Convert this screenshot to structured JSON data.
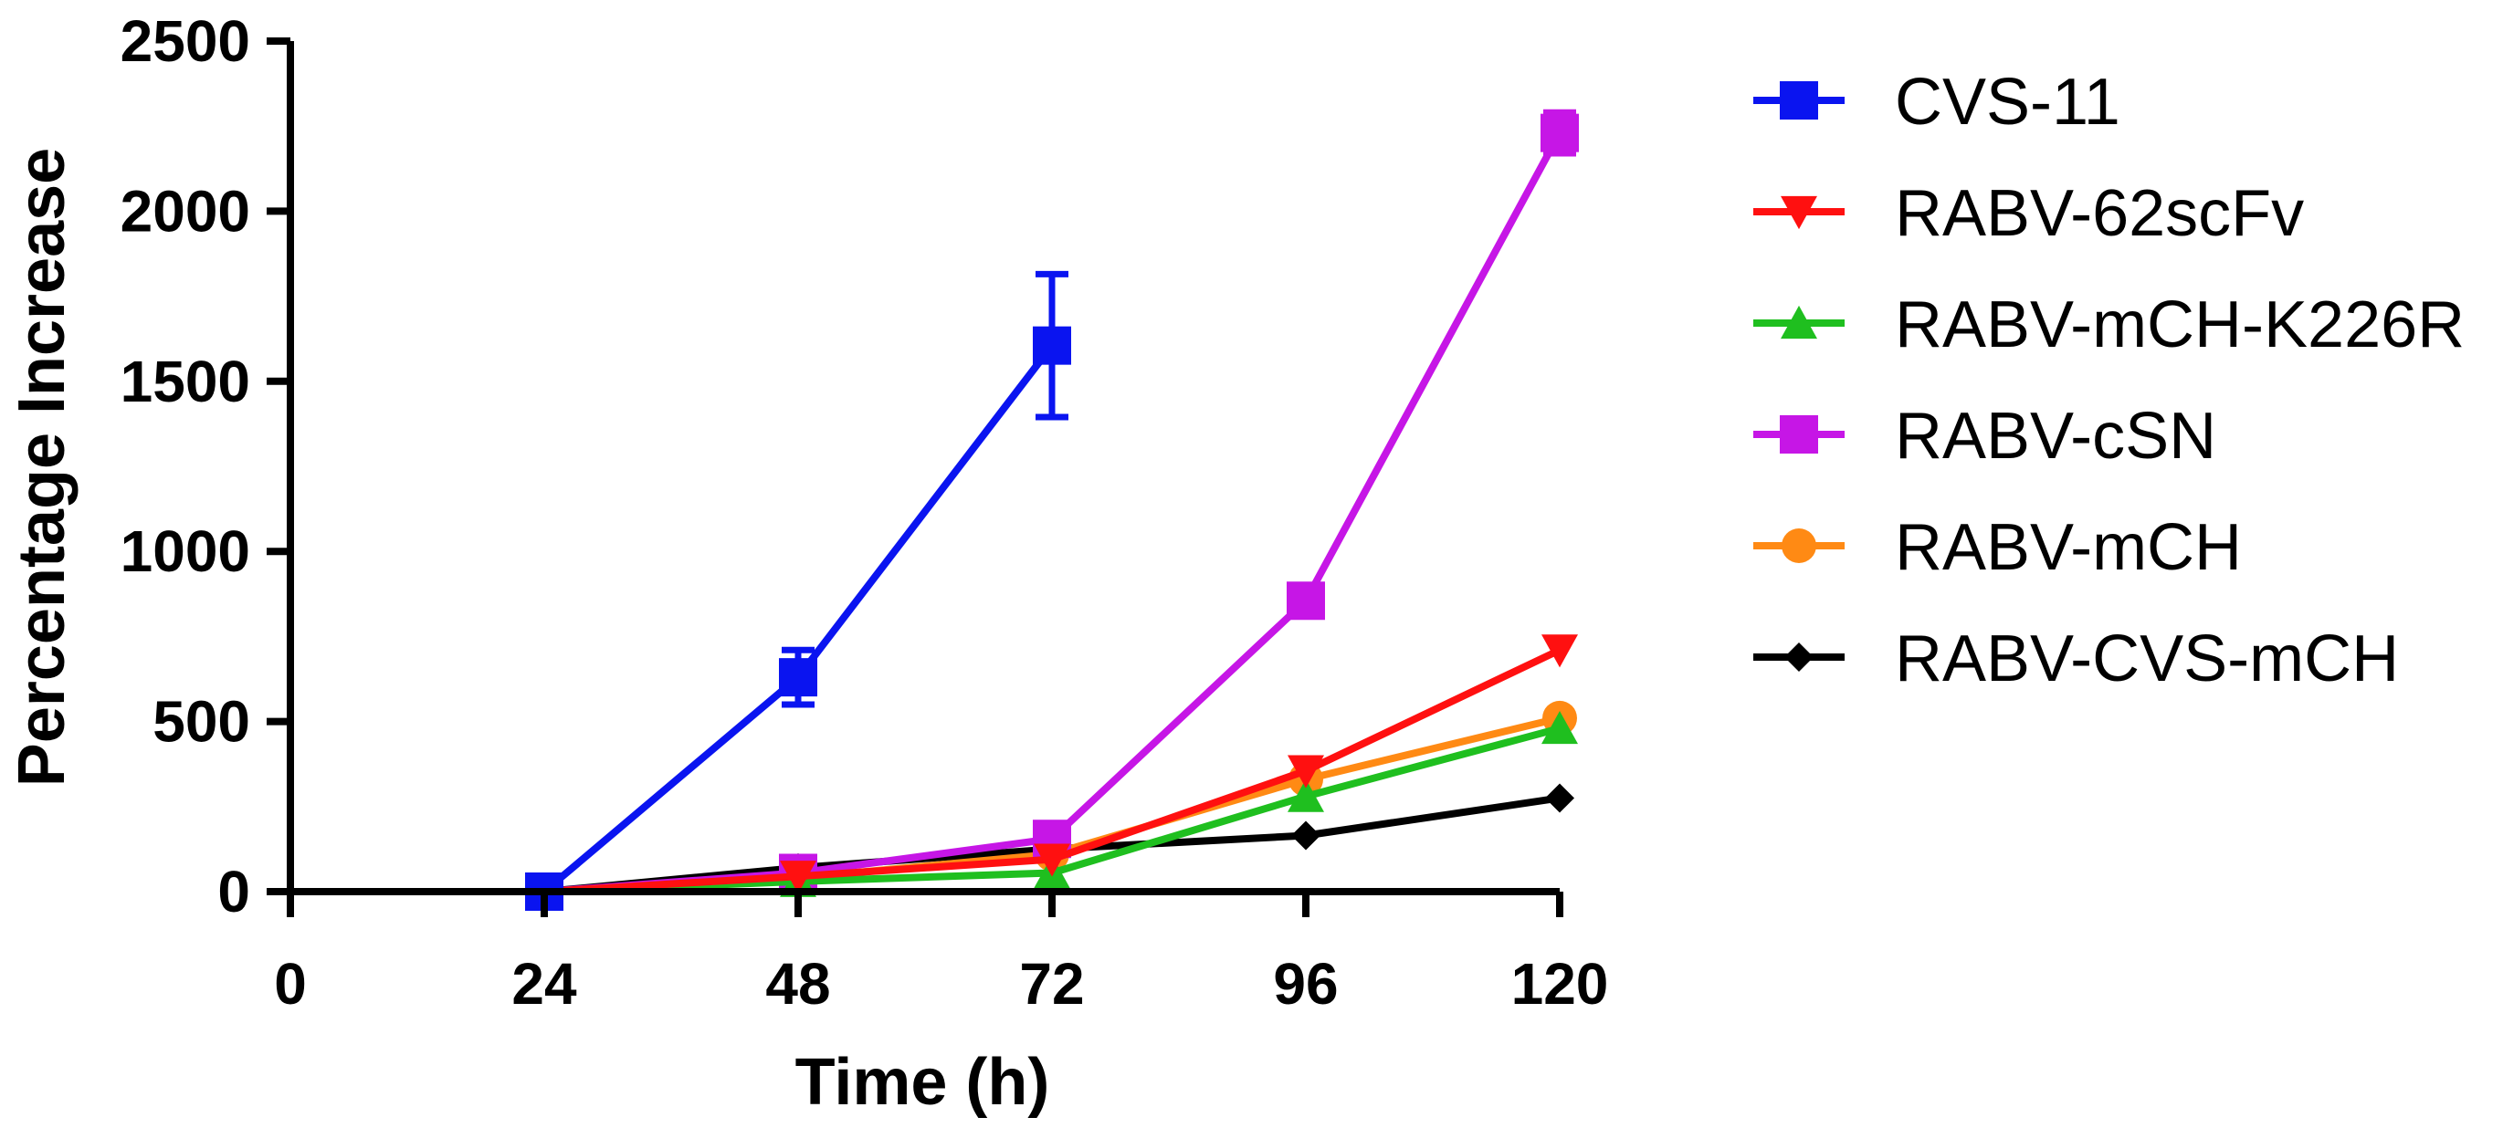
{
  "chart_data": {
    "type": "line",
    "title": "",
    "xlabel": "Time (h)",
    "ylabel": "Percentage Increase",
    "xlim": [
      0,
      120
    ],
    "ylim": [
      0,
      2500
    ],
    "xticks": [
      0,
      24,
      48,
      72,
      96,
      120
    ],
    "yticks": [
      0,
      500,
      1000,
      1500,
      2000,
      2500
    ],
    "xtick_labels": [
      "0",
      "24",
      "48",
      "72",
      "96",
      "120"
    ],
    "ytick_labels": [
      "0",
      "500",
      "1000",
      "1500",
      "2000",
      "2500"
    ],
    "grid": false,
    "legend_position": "right",
    "series": [
      {
        "name": "CVS-11",
        "color": "#0a14f0",
        "marker": "square",
        "x": [
          24,
          48,
          72
        ],
        "values": [
          0,
          630,
          1605
        ],
        "errors": [
          0,
          80,
          210
        ]
      },
      {
        "name": "RABV-62scFv",
        "color": "#ff1010",
        "marker": "triangle-down",
        "x": [
          24,
          48,
          72,
          96,
          120
        ],
        "values": [
          0,
          45,
          95,
          355,
          710
        ],
        "errors": [
          0,
          0,
          0,
          0,
          0
        ]
      },
      {
        "name": "RABV-mCH-K226R",
        "color": "#1fbf1f",
        "marker": "triangle-up",
        "x": [
          24,
          48,
          72,
          96,
          120
        ],
        "values": [
          0,
          30,
          55,
          280,
          480
        ],
        "errors": [
          0,
          0,
          0,
          0,
          0
        ]
      },
      {
        "name": "RABV-cSN",
        "color": "#c616e6",
        "marker": "square",
        "x": [
          24,
          48,
          72,
          96,
          120
        ],
        "values": [
          0,
          55,
          155,
          855,
          2230
        ],
        "errors": [
          0,
          0,
          0,
          0,
          60
        ]
      },
      {
        "name": "RABV-mCH",
        "color": "#ff8a14",
        "marker": "circle",
        "x": [
          24,
          48,
          72,
          96,
          120
        ],
        "values": [
          0,
          40,
          110,
          330,
          510
        ],
        "errors": [
          0,
          0,
          0,
          0,
          0
        ]
      },
      {
        "name": "RABV-CVS-mCH",
        "color": "#000000",
        "marker": "diamond",
        "x": [
          24,
          48,
          72,
          96,
          120
        ],
        "values": [
          0,
          70,
          125,
          165,
          275
        ],
        "errors": [
          0,
          0,
          0,
          0,
          0
        ]
      }
    ]
  }
}
